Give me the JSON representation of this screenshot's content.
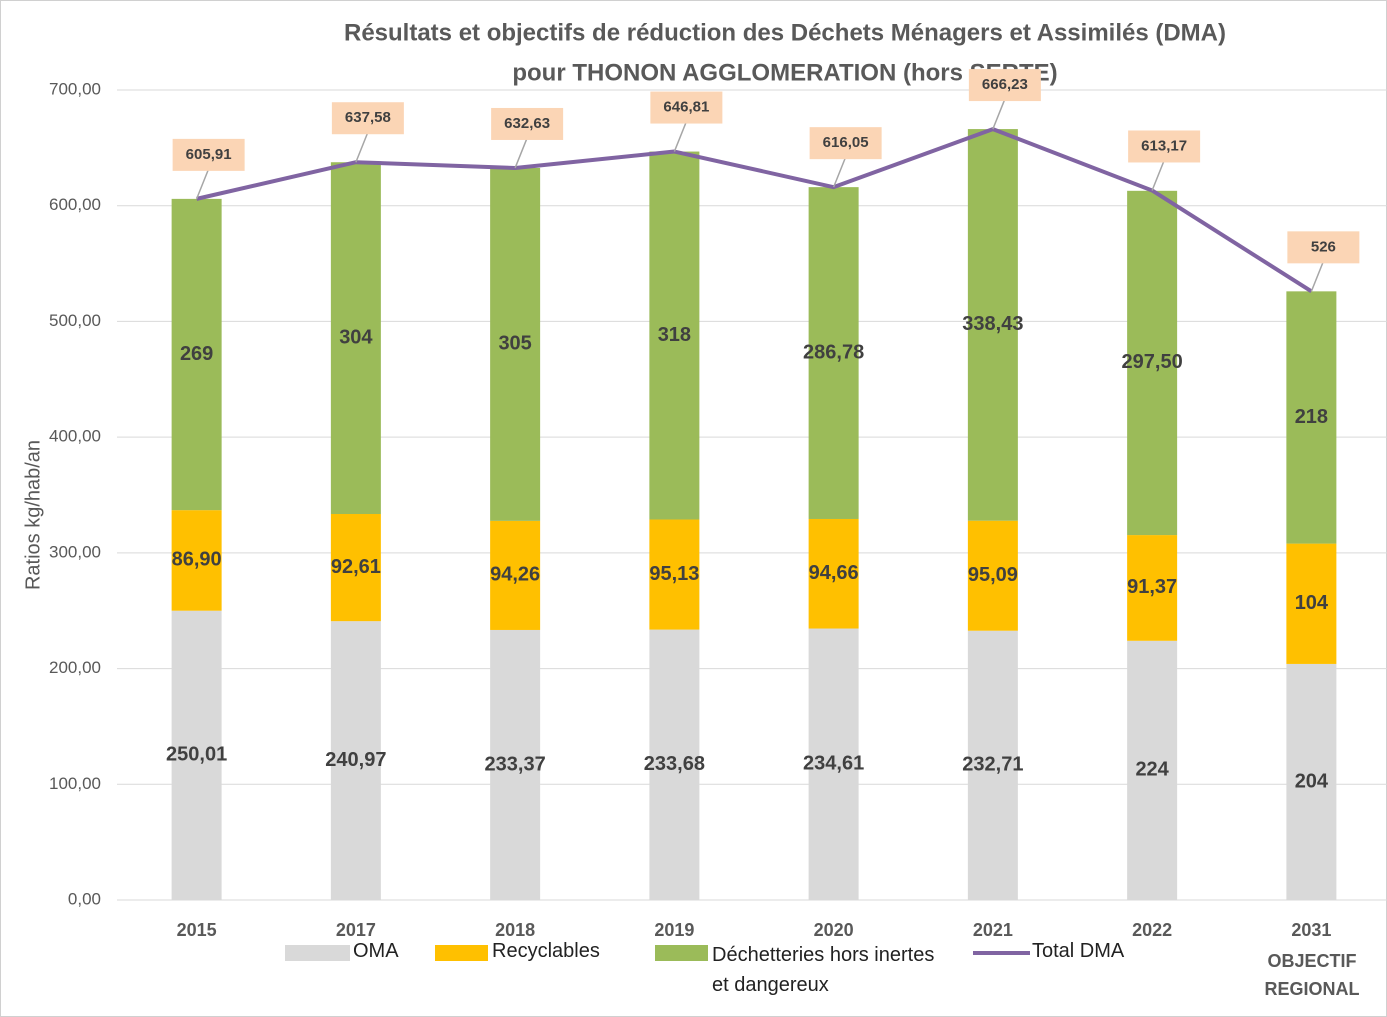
{
  "chart_data": {
    "type": "stacked_bar_line",
    "title": "Résultats et objectifs de réduction des Déchets Ménagers et Assimilés (DMA)",
    "subtitle": "pour THONON AGGLOMERATION (hors SERTE)",
    "y_label": "Ratios kg/hab/an",
    "categories": [
      "2015",
      "2017",
      "2018",
      "2019",
      "2020",
      "2021",
      "2022",
      "2031"
    ],
    "annotation": "OBJECTIF REGIONAL",
    "ylim": [
      0,
      700
    ],
    "yticks": [
      {
        "value": 0,
        "label": "0,00"
      },
      {
        "value": 100,
        "label": "100,00"
      },
      {
        "value": 200,
        "label": "200,00"
      },
      {
        "value": 300,
        "label": "300,00"
      },
      {
        "value": 400,
        "label": "400,00"
      },
      {
        "value": 500,
        "label": "500,00"
      },
      {
        "value": 600,
        "label": "600,00"
      },
      {
        "value": 700,
        "label": "700,00"
      }
    ],
    "grid": true,
    "series": [
      {
        "name": "OMA",
        "type": "bar",
        "color": "#d9d9d9",
        "values": [
          250.01,
          240.97,
          233.37,
          233.68,
          234.61,
          232.71,
          224,
          204
        ],
        "value_labels": [
          "250,01",
          "240,97",
          "233,37",
          "233,68",
          "234,61",
          "232,71",
          "224",
          "204"
        ]
      },
      {
        "name": "Recyclables",
        "type": "bar",
        "color": "#ffc000",
        "values": [
          86.9,
          92.61,
          94.26,
          95.13,
          94.66,
          95.09,
          91.37,
          104
        ],
        "value_labels": [
          "86,90",
          "92,61",
          "94,26",
          "95,13",
          "94,66",
          "95,09",
          "91,37",
          "104"
        ]
      },
      {
        "name": "Déchetteries hors inertes et dangereux",
        "type": "bar",
        "color": "#9bbb59",
        "values": [
          269,
          304,
          305,
          318,
          286.78,
          338.43,
          297.5,
          218
        ],
        "value_labels": [
          "269",
          "304",
          "305",
          "318",
          "286,78",
          "338,43",
          "297,50",
          "218"
        ]
      },
      {
        "name": "Total DMA",
        "type": "line",
        "color": "#8064a2",
        "values": [
          605.91,
          637.58,
          632.63,
          646.81,
          616.05,
          666.23,
          613.17,
          526
        ],
        "value_labels": [
          "605,91",
          "637,58",
          "632,63",
          "646,81",
          "616,05",
          "666,23",
          "613,17",
          "526"
        ]
      }
    ]
  }
}
